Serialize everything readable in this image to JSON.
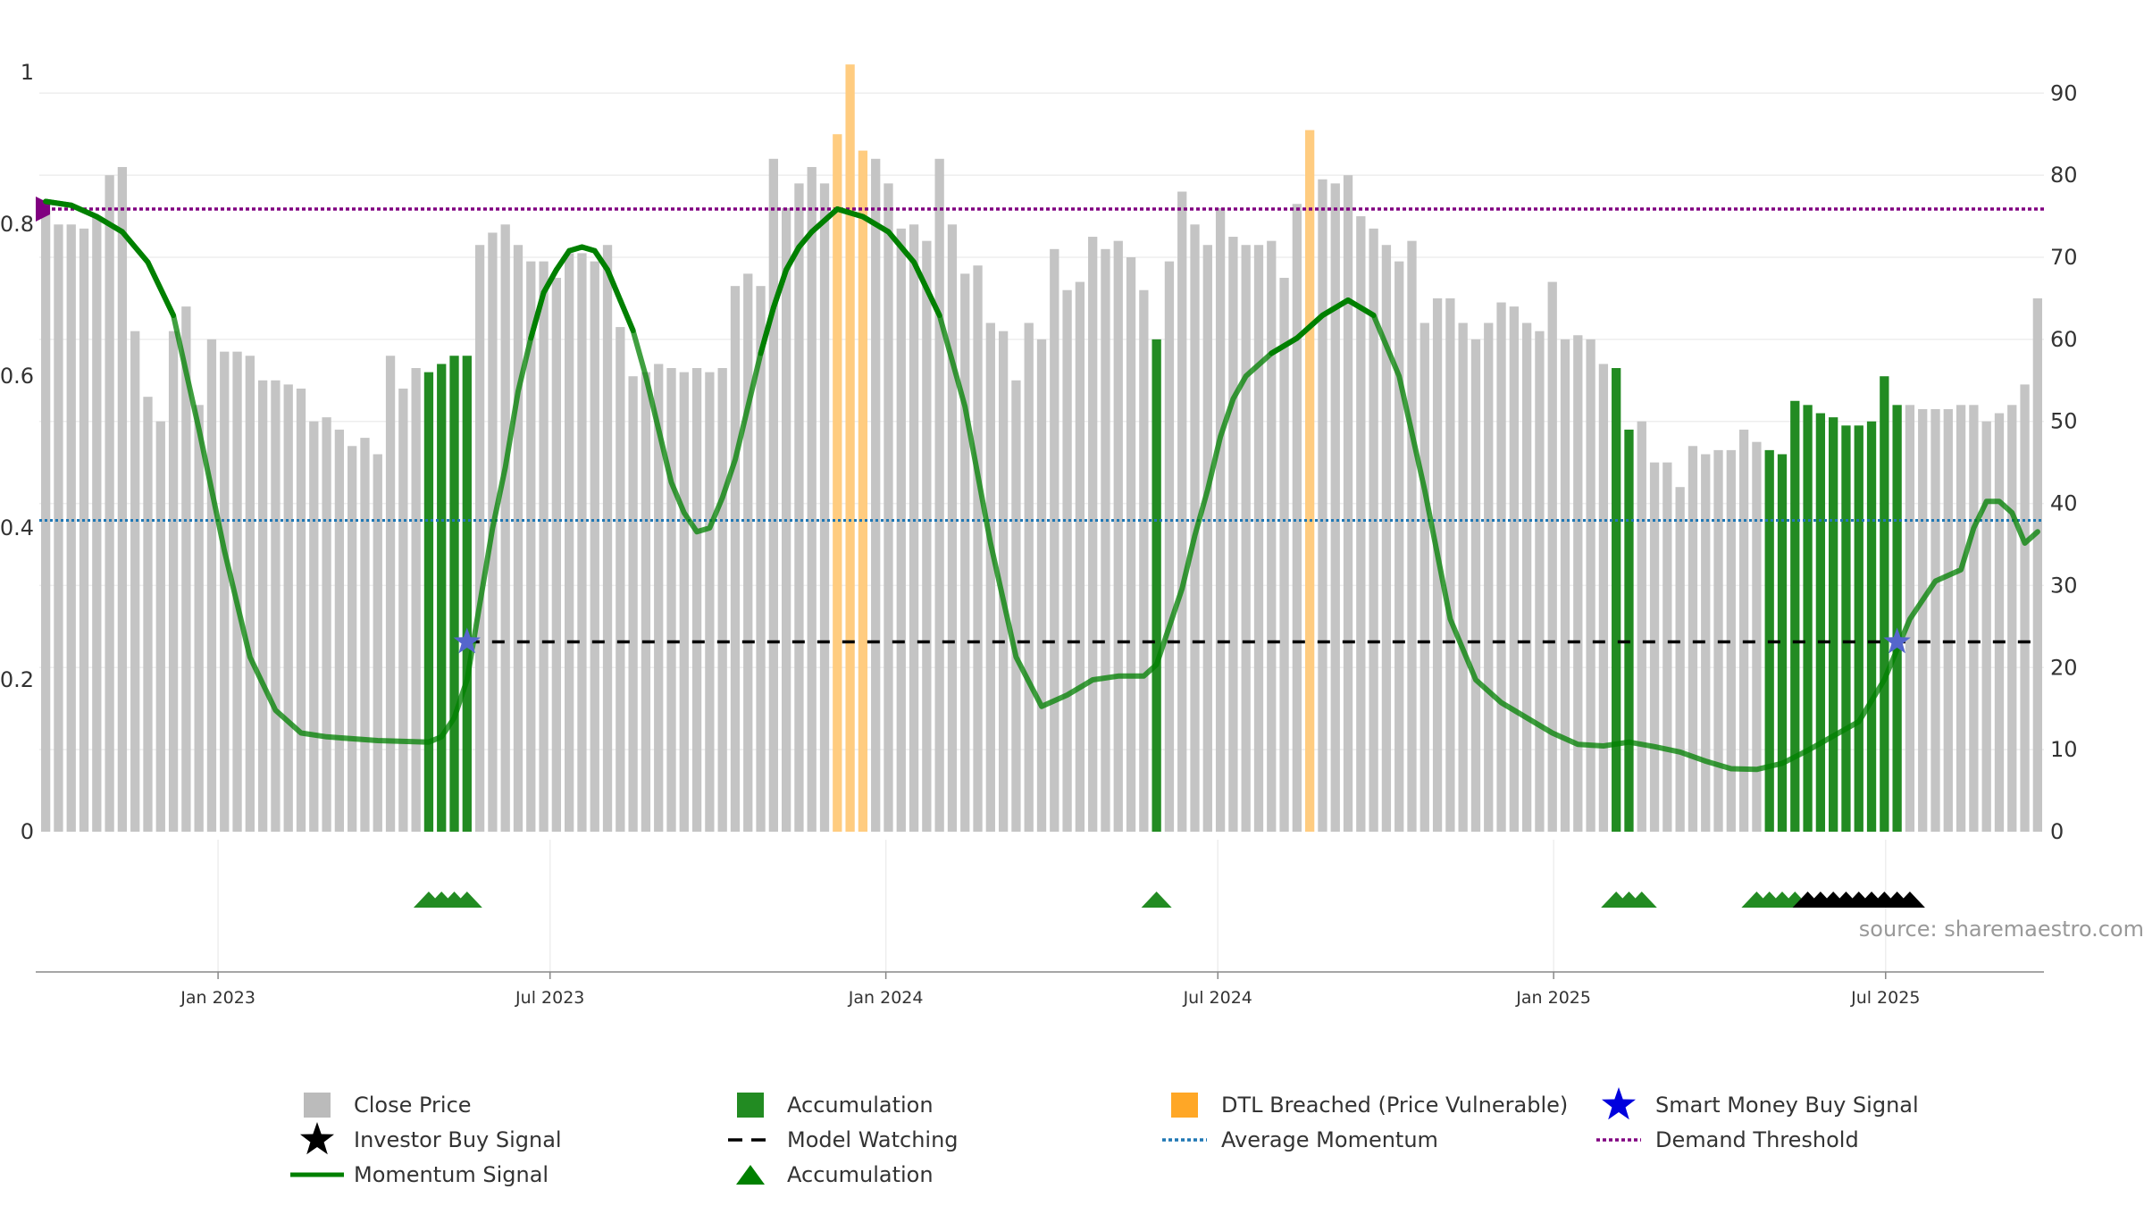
{
  "chart_data": {
    "type": "bar",
    "left_axis": {
      "ticks": [
        0,
        0.2,
        0.4,
        0.6,
        0.8,
        1
      ],
      "range": [
        0,
        1
      ]
    },
    "right_axis": {
      "ticks": [
        0,
        10,
        20,
        30,
        40,
        50,
        60,
        70,
        80,
        90
      ],
      "range": [
        0,
        97
      ]
    },
    "x_ticks": [
      {
        "label": "Jan 2023",
        "week": 14
      },
      {
        "label": "Jul 2023",
        "week": 40
      },
      {
        "label": "Jan 2024",
        "week": 66.3
      },
      {
        "label": "Jul 2024",
        "week": 92.3
      },
      {
        "label": "Jan 2025",
        "week": 118.6
      },
      {
        "label": "Jul 2025",
        "week": 144.6
      }
    ],
    "week_count": 157,
    "close_price": [
      77,
      74,
      74,
      73.5,
      75,
      80,
      81,
      61,
      53,
      50,
      61,
      64,
      52,
      60,
      58.5,
      58.5,
      58,
      55,
      55,
      54.5,
      54,
      50,
      50.5,
      49,
      47,
      48,
      46,
      58,
      54,
      56.5,
      56,
      57,
      58,
      58,
      71.5,
      73,
      74,
      71.5,
      69.5,
      69.5,
      67.5,
      70.5,
      70.5,
      69.5,
      71.5,
      61.5,
      55.5,
      56,
      57,
      56.5,
      56,
      56.5,
      56,
      56.5,
      66.5,
      68,
      66.5,
      82,
      76,
      79,
      81,
      79,
      85,
      93.5,
      83,
      82,
      79,
      73.5,
      74,
      72,
      82,
      74,
      68,
      69,
      62,
      61,
      55,
      62,
      60,
      71,
      66,
      67,
      72.5,
      71,
      72,
      70,
      66,
      60,
      69.5,
      78,
      74,
      71.5,
      76,
      72.5,
      71.5,
      71.5,
      72,
      67.5,
      76.5,
      85.5,
      79.5,
      79,
      80,
      75,
      73.5,
      71.5,
      69.5,
      72,
      62,
      65,
      65,
      62,
      60,
      62,
      64.5,
      64,
      62,
      61,
      67,
      60,
      60.5,
      60,
      57,
      56.5,
      49,
      50,
      45,
      45,
      42,
      47,
      46,
      46.5,
      46.5,
      49,
      47.5,
      46.5,
      46,
      52.5,
      52,
      51,
      50.5,
      49.5,
      49.5,
      50,
      55.5,
      52,
      52,
      51.5,
      51.5,
      51.5,
      52,
      52,
      50,
      51,
      52,
      54.5,
      65
    ],
    "accumulation_bars": [
      [
        30,
        33
      ],
      [
        87,
        87
      ],
      [
        123,
        124
      ],
      [
        135,
        145
      ]
    ],
    "dtl_breached_bars": [
      [
        62,
        64
      ],
      [
        99,
        99
      ]
    ],
    "momentum_signal": [
      [
        0,
        0.83
      ],
      [
        2,
        0.825
      ],
      [
        4,
        0.81
      ],
      [
        6,
        0.79
      ],
      [
        8,
        0.75
      ],
      [
        10,
        0.68
      ],
      [
        12,
        0.53
      ],
      [
        14,
        0.37
      ],
      [
        16,
        0.23
      ],
      [
        18,
        0.16
      ],
      [
        20,
        0.13
      ],
      [
        22,
        0.125
      ],
      [
        26,
        0.12
      ],
      [
        30,
        0.118
      ],
      [
        31,
        0.125
      ],
      [
        32,
        0.15
      ],
      [
        33,
        0.2
      ],
      [
        34,
        0.3
      ],
      [
        35,
        0.4
      ],
      [
        36,
        0.48
      ],
      [
        37,
        0.58
      ],
      [
        38,
        0.65
      ],
      [
        39,
        0.71
      ],
      [
        40,
        0.74
      ],
      [
        41,
        0.765
      ],
      [
        42,
        0.77
      ],
      [
        43,
        0.765
      ],
      [
        44,
        0.74
      ],
      [
        45,
        0.7
      ],
      [
        46,
        0.66
      ],
      [
        47,
        0.6
      ],
      [
        48,
        0.53
      ],
      [
        49,
        0.46
      ],
      [
        50,
        0.42
      ],
      [
        51,
        0.395
      ],
      [
        52,
        0.4
      ],
      [
        53,
        0.44
      ],
      [
        54,
        0.49
      ],
      [
        55,
        0.56
      ],
      [
        56,
        0.63
      ],
      [
        57,
        0.69
      ],
      [
        58,
        0.74
      ],
      [
        59,
        0.77
      ],
      [
        60,
        0.79
      ],
      [
        62,
        0.82
      ],
      [
        64,
        0.81
      ],
      [
        66,
        0.79
      ],
      [
        68,
        0.75
      ],
      [
        70,
        0.68
      ],
      [
        72,
        0.56
      ],
      [
        74,
        0.38
      ],
      [
        76,
        0.23
      ],
      [
        78,
        0.165
      ],
      [
        80,
        0.18
      ],
      [
        82,
        0.2
      ],
      [
        84,
        0.205
      ],
      [
        86,
        0.205
      ],
      [
        87,
        0.22
      ],
      [
        88,
        0.27
      ],
      [
        89,
        0.32
      ],
      [
        90,
        0.39
      ],
      [
        91,
        0.45
      ],
      [
        92,
        0.52
      ],
      [
        93,
        0.57
      ],
      [
        94,
        0.6
      ],
      [
        96,
        0.63
      ],
      [
        98,
        0.65
      ],
      [
        100,
        0.68
      ],
      [
        102,
        0.7
      ],
      [
        104,
        0.68
      ],
      [
        106,
        0.6
      ],
      [
        108,
        0.45
      ],
      [
        110,
        0.28
      ],
      [
        112,
        0.2
      ],
      [
        114,
        0.17
      ],
      [
        116,
        0.15
      ],
      [
        118,
        0.13
      ],
      [
        120,
        0.115
      ],
      [
        122,
        0.113
      ],
      [
        124,
        0.118
      ],
      [
        126,
        0.112
      ],
      [
        128,
        0.105
      ],
      [
        130,
        0.093
      ],
      [
        132,
        0.083
      ],
      [
        134,
        0.082
      ],
      [
        136,
        0.09
      ],
      [
        138,
        0.107
      ],
      [
        140,
        0.126
      ],
      [
        142,
        0.145
      ],
      [
        144,
        0.2
      ],
      [
        146,
        0.28
      ],
      [
        148,
        0.33
      ],
      [
        150,
        0.345
      ],
      [
        151,
        0.4
      ],
      [
        152,
        0.435
      ],
      [
        153,
        0.435
      ],
      [
        154,
        0.42
      ],
      [
        155,
        0.38
      ],
      [
        156,
        0.395
      ]
    ],
    "average_momentum": 0.41,
    "demand_threshold": 0.82,
    "model_watching": {
      "level": 0.25,
      "from_week": 33,
      "to_week": 156
    },
    "smart_money_buy_signals": [
      {
        "week": 33,
        "value": 0.25
      },
      {
        "week": 145,
        "value": 0.25
      }
    ],
    "accumulation_markers": [
      30,
      31,
      32,
      33,
      87,
      123,
      124,
      125,
      134,
      135,
      136,
      137
    ],
    "investor_buy_markers": [
      138,
      139,
      140,
      141,
      142,
      143,
      144,
      145,
      146
    ],
    "legend": [
      {
        "label": "Close Price",
        "type": "square",
        "color": "#bbbbbb"
      },
      {
        "label": "Accumulation",
        "type": "square",
        "color": "#228b22"
      },
      {
        "label": "DTL Breached (Price Vulnerable)",
        "type": "square",
        "color": "#ffa726"
      },
      {
        "label": "Smart Money Buy Signal",
        "type": "star",
        "color": "#0000dd"
      },
      {
        "label": "Investor Buy Signal",
        "type": "star",
        "color": "#000000"
      },
      {
        "label": "Model Watching",
        "type": "dash",
        "color": "#000000"
      },
      {
        "label": "Average Momentum",
        "type": "dot",
        "color": "#1f77b4"
      },
      {
        "label": "Demand Threshold",
        "type": "dot",
        "color": "#800080"
      },
      {
        "label": "Momentum Signal",
        "type": "line",
        "color": "#008000"
      },
      {
        "label": "Accumulation",
        "type": "triangle",
        "color": "#008000"
      }
    ],
    "colors": {
      "close_price": "#c4c4c4",
      "accumulation": "#228b22",
      "dtl_breached": "#ffcc80",
      "momentum": "#008000",
      "average_momentum": "#1f77b4",
      "demand_threshold": "#800080",
      "model_watching": "#000000",
      "smart_money": "#5566cc",
      "investor": "#000000"
    }
  },
  "source": "source: sharemaestro.com"
}
